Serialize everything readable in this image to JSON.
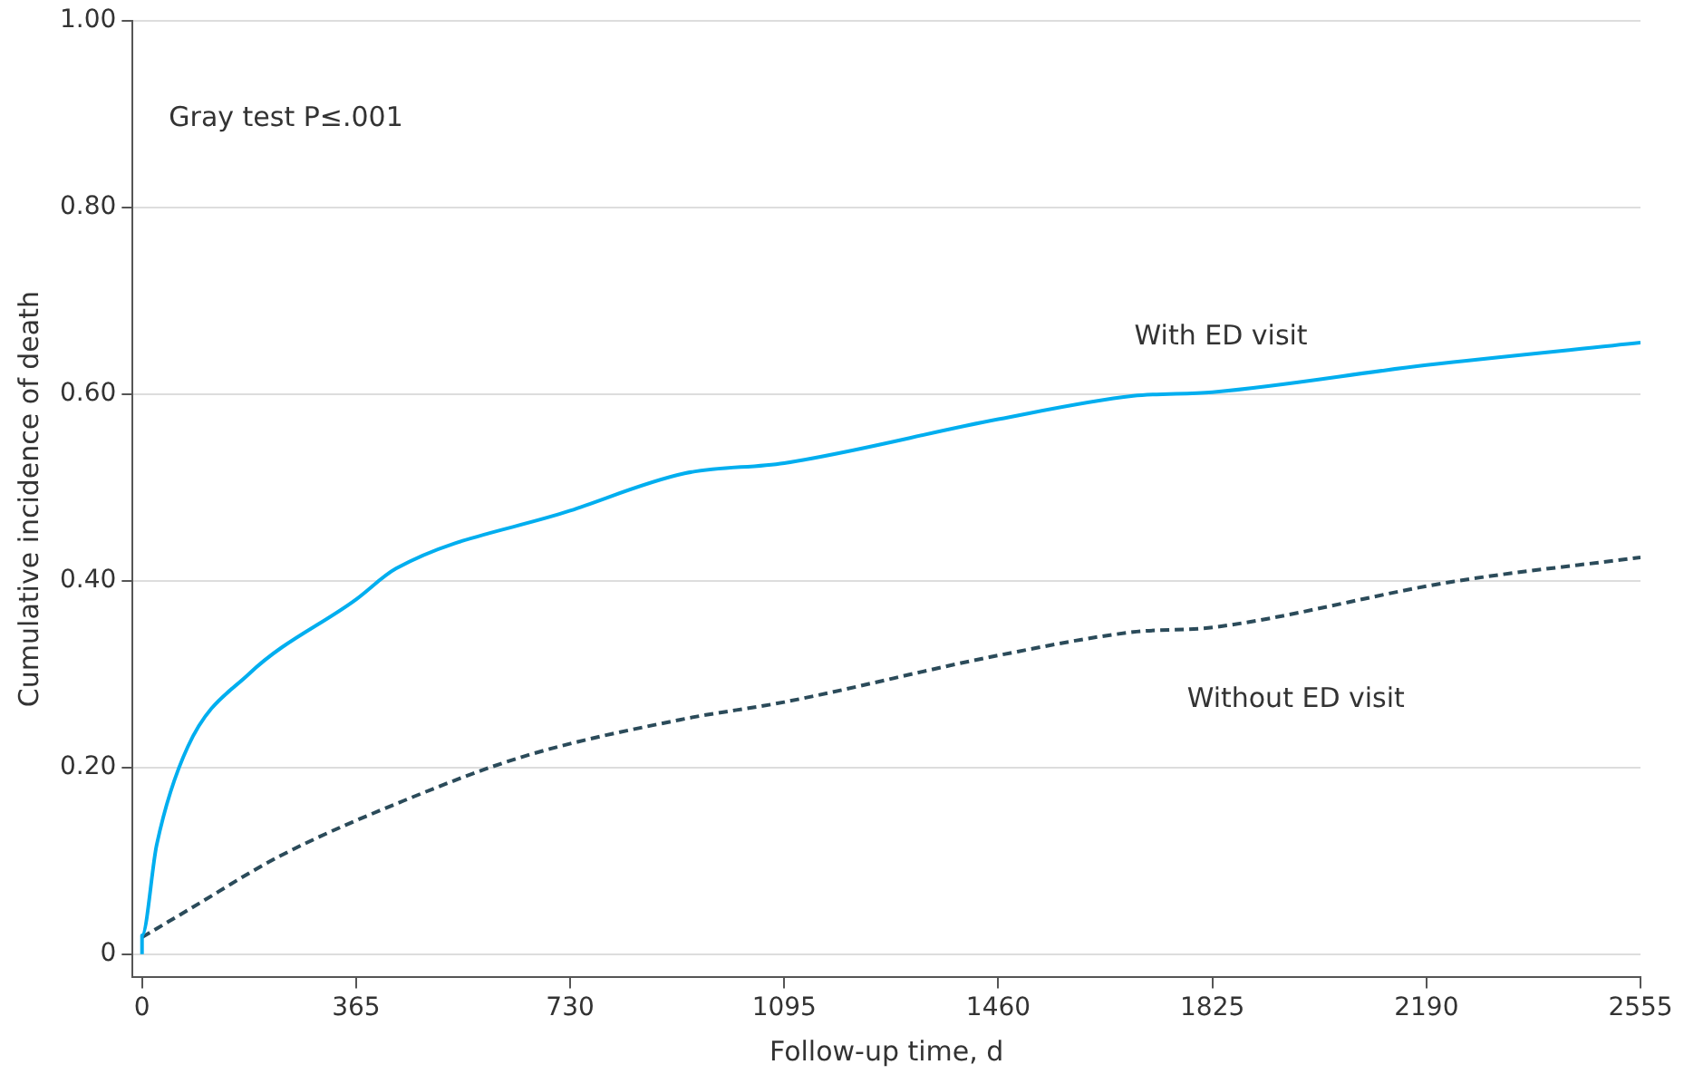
{
  "chart_data": {
    "type": "line",
    "xlabel": "Follow-up time, d",
    "ylabel": "Cumulative incidence of death",
    "xlim": [
      -16,
      2555
    ],
    "ylim": [
      -0.025,
      1
    ],
    "xticks": [
      0,
      365,
      730,
      1095,
      1460,
      1825,
      2190,
      2555
    ],
    "yticks": [
      0,
      {
        "value": 0.2,
        "label": "0.20"
      },
      {
        "value": 0.4,
        "label": "0.40"
      },
      {
        "value": 0.6,
        "label": "0.60"
      },
      {
        "value": 0.8,
        "label": "0.80"
      },
      {
        "value": 1,
        "label": "1.00"
      }
    ],
    "grid": "y",
    "legend": false,
    "marker": "none",
    "series": [
      {
        "name": "With ED visit",
        "color": "#00aeef",
        "line_style": "solid",
        "x": [
          0,
          0,
          25,
          78,
          182,
          365,
          433,
          730,
          925,
          1095,
          1460,
          1690,
          1825,
          2190,
          2555
        ],
        "values": [
          0,
          0.02,
          0.117,
          0.222,
          0.3,
          0.38,
          0.413,
          0.475,
          0.515,
          0.526,
          0.573,
          0.598,
          0.602,
          0.631,
          0.655
        ]
      },
      {
        "name": "Without ED visit",
        "color": "#2b4b5a",
        "line_style": "dashed",
        "x": [
          0,
          78,
          235,
          445,
          652,
          925,
          1095,
          1460,
          1690,
          1825,
          2235,
          2555
        ],
        "values": [
          0.018,
          0.047,
          0.105,
          0.164,
          0.212,
          0.252,
          0.27,
          0.32,
          0.345,
          0.35,
          0.399,
          0.425
        ]
      }
    ],
    "annotations": [
      "Gray test P≤.001"
    ]
  }
}
